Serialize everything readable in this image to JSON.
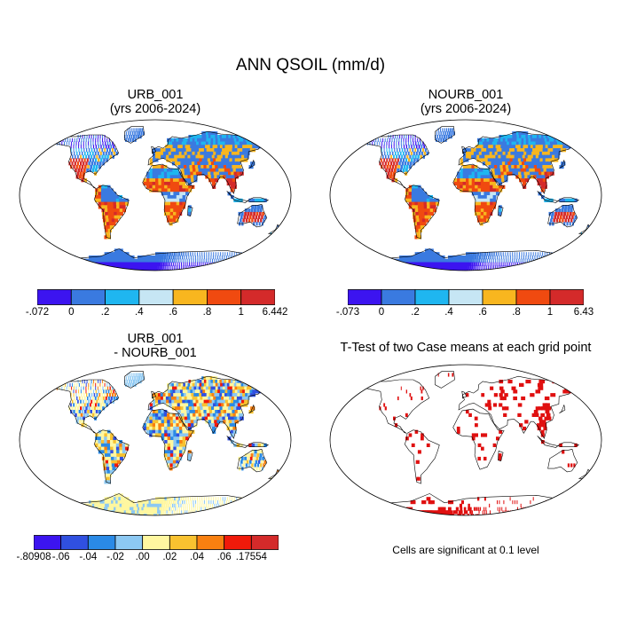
{
  "title": "ANN QSOIL (mm/d)",
  "panels": [
    {
      "id": "urb",
      "title1": "URB_001",
      "title2": "(yrs 2006-2024)"
    },
    {
      "id": "nourb",
      "title1": "NOURB_001",
      "title2": "(yrs 2006-2024)"
    },
    {
      "id": "diff",
      "title1": "URB_001",
      "title2": "- NOURB_001"
    },
    {
      "id": "ttest",
      "title1": "T-Test of two Case means at each grid point",
      "title2": ""
    }
  ],
  "colorbars": [
    {
      "id": "urb",
      "colors": [
        "#3c14f0",
        "#3a7ae0",
        "#1fb6f0",
        "#c6e6f4",
        "#f8b61f",
        "#f04a10",
        "#d42a2a"
      ],
      "labels": [
        ".072",
        "0",
        ".2",
        ".4",
        ".6",
        ".8",
        "1",
        "6.442"
      ],
      "label_prefix_first": "-"
    },
    {
      "id": "nourb",
      "colors": [
        "#3c14f0",
        "#3a7ae0",
        "#1fb6f0",
        "#c6e6f4",
        "#f8b61f",
        "#f04a10",
        "#d42a2a"
      ],
      "labels": [
        ".073",
        "0",
        ".2",
        ".4",
        ".6",
        ".8",
        "1",
        "6.43"
      ],
      "label_prefix_first": "-"
    },
    {
      "id": "diff",
      "colors": [
        "#3c14f0",
        "#3050e0",
        "#2a8ae6",
        "#8cc8f2",
        "#fff7a0",
        "#f8c230",
        "#f88010",
        "#f01a0a",
        "#d42a2a"
      ],
      "labels": [
        "-.80908",
        "-.06",
        "-.04",
        "-.02",
        ".00",
        ".02",
        ".04",
        ".06",
        ".17554"
      ]
    }
  ],
  "note": "Cells are significant at 0.1 level",
  "colors": {
    "significant": "#e01010",
    "land_outline": "#000000"
  }
}
